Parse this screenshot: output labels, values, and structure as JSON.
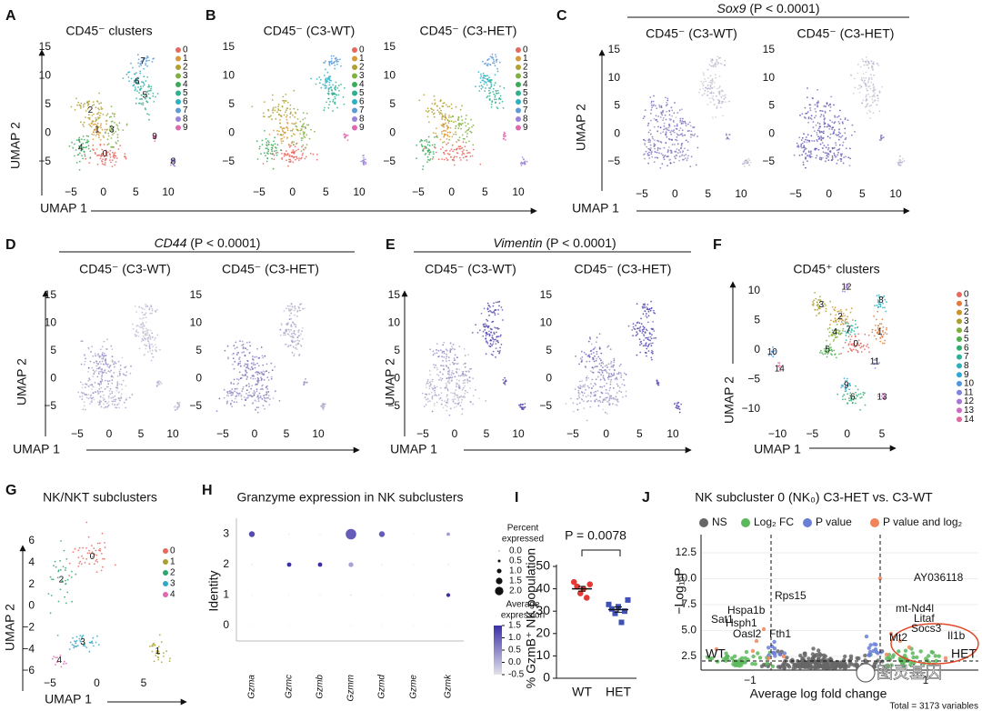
{
  "panels": {
    "A": {
      "letter": "A",
      "title": "CD45⁻ clusters",
      "legend": [
        "0",
        "1",
        "2",
        "3",
        "4",
        "5",
        "6",
        "7",
        "8",
        "9"
      ],
      "xticks": [
        "−5",
        "0",
        "5",
        "10"
      ],
      "yticks": [
        "15",
        "10",
        "5",
        "0",
        "−5"
      ],
      "xlabel": "UMAP 1",
      "ylabel": "UMAP 2"
    },
    "B": {
      "letter": "B",
      "subplots": [
        {
          "title": "CD45⁻ (C3-WT)",
          "legend": [
            "0",
            "1",
            "2",
            "3",
            "4",
            "5",
            "6",
            "7",
            "8",
            "9"
          ],
          "xticks": [
            "−5",
            "0",
            "5",
            "10"
          ],
          "yticks": [
            "15",
            "10",
            "5",
            "0",
            "−5"
          ]
        },
        {
          "title": "CD45⁻ (C3-HET)",
          "legend": [
            "0",
            "1",
            "2",
            "3",
            "4",
            "5",
            "6",
            "7",
            "8",
            "9"
          ],
          "xticks": [
            "−5",
            "0",
            "5",
            "10"
          ],
          "yticks": [
            "15",
            "10",
            "5",
            "0",
            "−5"
          ]
        }
      ]
    },
    "C": {
      "letter": "C",
      "gene": "Sox9",
      "stat": "(P < 0.0001)",
      "xlabel": "UMAP 1",
      "ylabel": "UMAP 2",
      "subplots": [
        {
          "title": "CD45⁻ (C3-WT)",
          "xticks": [
            "−5",
            "0",
            "5",
            "10"
          ],
          "yticks": [
            "15",
            "10",
            "5",
            "0",
            "−5"
          ]
        },
        {
          "title": "CD45⁻ (C3-HET)",
          "xticks": [
            "−5",
            "0",
            "5",
            "10"
          ],
          "yticks": [
            "15",
            "10",
            "5",
            "0",
            "−5"
          ]
        }
      ]
    },
    "D": {
      "letter": "D",
      "gene": "CD44",
      "stat": "(P < 0.0001)",
      "xlabel": "UMAP 1",
      "ylabel": "UMAP 2",
      "subplots": [
        {
          "title": "CD45⁻ (C3-WT)",
          "xticks": [
            "−5",
            "0",
            "5",
            "10"
          ],
          "yticks": [
            "15",
            "10",
            "5",
            "0",
            "−5"
          ]
        },
        {
          "title": "CD45⁻ (C3-HET)",
          "xticks": [
            "−5",
            "0",
            "5",
            "10"
          ],
          "yticks": [
            "15",
            "10",
            "5",
            "0",
            "−5"
          ]
        }
      ]
    },
    "E": {
      "letter": "E",
      "gene": "Vimentin",
      "stat": "(P < 0.0001)",
      "xlabel": "UMAP 1",
      "ylabel": "UMAP 2",
      "subplots": [
        {
          "title": "CD45⁻ (C3-WT)",
          "xticks": [
            "−5",
            "0",
            "5",
            "10"
          ],
          "yticks": [
            "15",
            "10",
            "5",
            "0",
            "−5"
          ]
        },
        {
          "title": "CD45⁻ (C3-HET)",
          "xticks": [
            "−5",
            "0",
            "5",
            "10"
          ],
          "yticks": [
            "15",
            "10",
            "5",
            "0",
            "−5"
          ]
        }
      ]
    },
    "F": {
      "letter": "F",
      "title": "CD45⁺ clusters",
      "legend": [
        "0",
        "1",
        "2",
        "3",
        "4",
        "5",
        "6",
        "7",
        "8",
        "9",
        "10",
        "11",
        "12",
        "13",
        "14"
      ],
      "xticks": [
        "−10",
        "−5",
        "0",
        "5"
      ],
      "yticks": [
        "10",
        "5",
        "0",
        "−5",
        "−10"
      ],
      "xlabel": "UMAP 1",
      "ylabel": "UMAP 2"
    },
    "G": {
      "letter": "G",
      "title": "NK/NKT subclusters",
      "legend": [
        "0",
        "1",
        "2",
        "3",
        "4"
      ],
      "xticks": [
        "−5",
        "0",
        "5"
      ],
      "yticks": [
        "6",
        "4",
        "2",
        "0",
        "−2",
        "−4",
        "−6"
      ],
      "xlabel": "UMAP 1",
      "ylabel": "UMAP 2"
    },
    "H": {
      "letter": "H",
      "title": "Granzyme expression in NK subclusters",
      "ylabel": "Identity",
      "identities": [
        "0",
        "1",
        "2",
        "3"
      ],
      "genes": [
        "Gzma",
        "Gzmc",
        "Gzmb",
        "Gzmm",
        "Gzmd",
        "Gzme",
        "Gzmk"
      ],
      "pct": [
        [
          0,
          0,
          0,
          0.02,
          0,
          0,
          0
        ],
        [
          0,
          0,
          0,
          0.05,
          0,
          0,
          0.6
        ],
        [
          0.05,
          0.7,
          0.7,
          0.8,
          0.05,
          0,
          0.05
        ],
        [
          1.0,
          0.05,
          0.05,
          2.0,
          1.0,
          0,
          0.5
        ]
      ],
      "avg": [
        [
          -0.5,
          -0.5,
          -0.5,
          -0.5,
          -0.5,
          -0.5,
          -0.5
        ],
        [
          -0.5,
          -0.5,
          -0.5,
          -0.3,
          -0.5,
          -0.5,
          1.5
        ],
        [
          -0.5,
          1.5,
          1.5,
          0.2,
          -0.5,
          -0.5,
          -0.5
        ],
        [
          1.2,
          -0.5,
          -0.5,
          1.0,
          1.0,
          -0.5,
          0.3
        ]
      ],
      "pct_title": [
        "Percent",
        "expressed"
      ],
      "pct_ticks": [
        {
          "value": 0,
          "label": "0.0"
        },
        0.5,
        {
          "value": 1,
          "label": "1.0"
        },
        1.5,
        {
          "value": 2,
          "label": "2.0"
        }
      ],
      "avg_title": [
        "Average",
        "expression"
      ],
      "avg_ticks": [
        1.5,
        {
          "value": 1,
          "label": "1.0"
        },
        0.5,
        {
          "value": 0,
          "label": "0.0"
        },
        -0.5
      ]
    },
    "I": {
      "letter": "I",
      "ylabel": "% GzmB⁺ NK population",
      "annotation": "P = 0.0078",
      "categories": [
        "WT",
        "HET"
      ],
      "series": [
        {
          "color": "#e53935",
          "values": [
            43,
            41,
            38,
            40,
            36,
            42
          ]
        },
        {
          "color": "#3f51b5",
          "values": [
            33,
            31,
            29,
            32,
            25,
            30,
            35
          ]
        }
      ],
      "ylim": [
        0,
        50
      ],
      "yticks": [
        0,
        10,
        20,
        30,
        40,
        50
      ]
    },
    "J": {
      "letter": "J",
      "title": "NK subcluster 0 (NK₀) C3-HET vs. C3-WT",
      "legend": [
        {
          "label": "NS",
          "color": "#666666"
        },
        {
          "label": "Log₂ FC",
          "color": "#5cb85c"
        },
        {
          "label": "P value",
          "color": "#6b7fd7"
        },
        {
          "label": "P value and log₂",
          "color": "#f0845a"
        }
      ],
      "ylabel": "−Log₁₀P",
      "xlabel": "Average log fold change",
      "yticks": [
        "2.5",
        "5.0",
        "7.5",
        "10.0",
        "12.5"
      ],
      "xticks": [
        "−1",
        "1"
      ],
      "gene_labels": [
        "AY036118",
        "Rps15",
        "Hspa1b",
        "Hsph1",
        "Oasl2",
        "Fth1",
        "Sat1",
        "mt-Nd4l",
        "Litaf",
        "Socs3",
        "Mt2",
        "Il1b"
      ],
      "side_labels": [
        "WT",
        "HET"
      ],
      "footnote": "Total = 3173 variables"
    }
  },
  "watermark": "图灵基因"
}
